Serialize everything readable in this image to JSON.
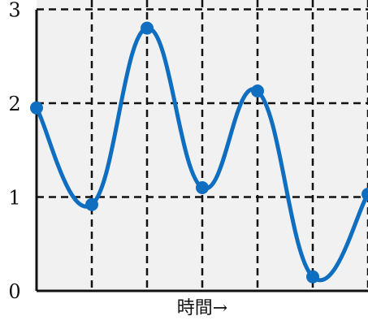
{
  "chart_data": {
    "type": "line",
    "title": "",
    "xlabel": "時間→",
    "ylabel": "",
    "x": [
      0,
      1,
      2,
      3,
      4,
      5,
      6
    ],
    "xlim": [
      0,
      6
    ],
    "ylim": [
      0,
      3.1
    ],
    "xticks": [
      0,
      1,
      2,
      3,
      4,
      5,
      6
    ],
    "yticks": [
      0,
      1,
      2,
      3
    ],
    "ytick_labels": [
      "0",
      "1",
      "2",
      "3"
    ],
    "grid": true,
    "series": [
      {
        "values": [
          1.95,
          0.92,
          2.8,
          1.1,
          2.13,
          0.15,
          1.03
        ]
      }
    ],
    "colors": {
      "line": "#0f6ebf",
      "plot_background": "#f1f1f1",
      "grid": "#111111",
      "axis": "#111111"
    }
  }
}
